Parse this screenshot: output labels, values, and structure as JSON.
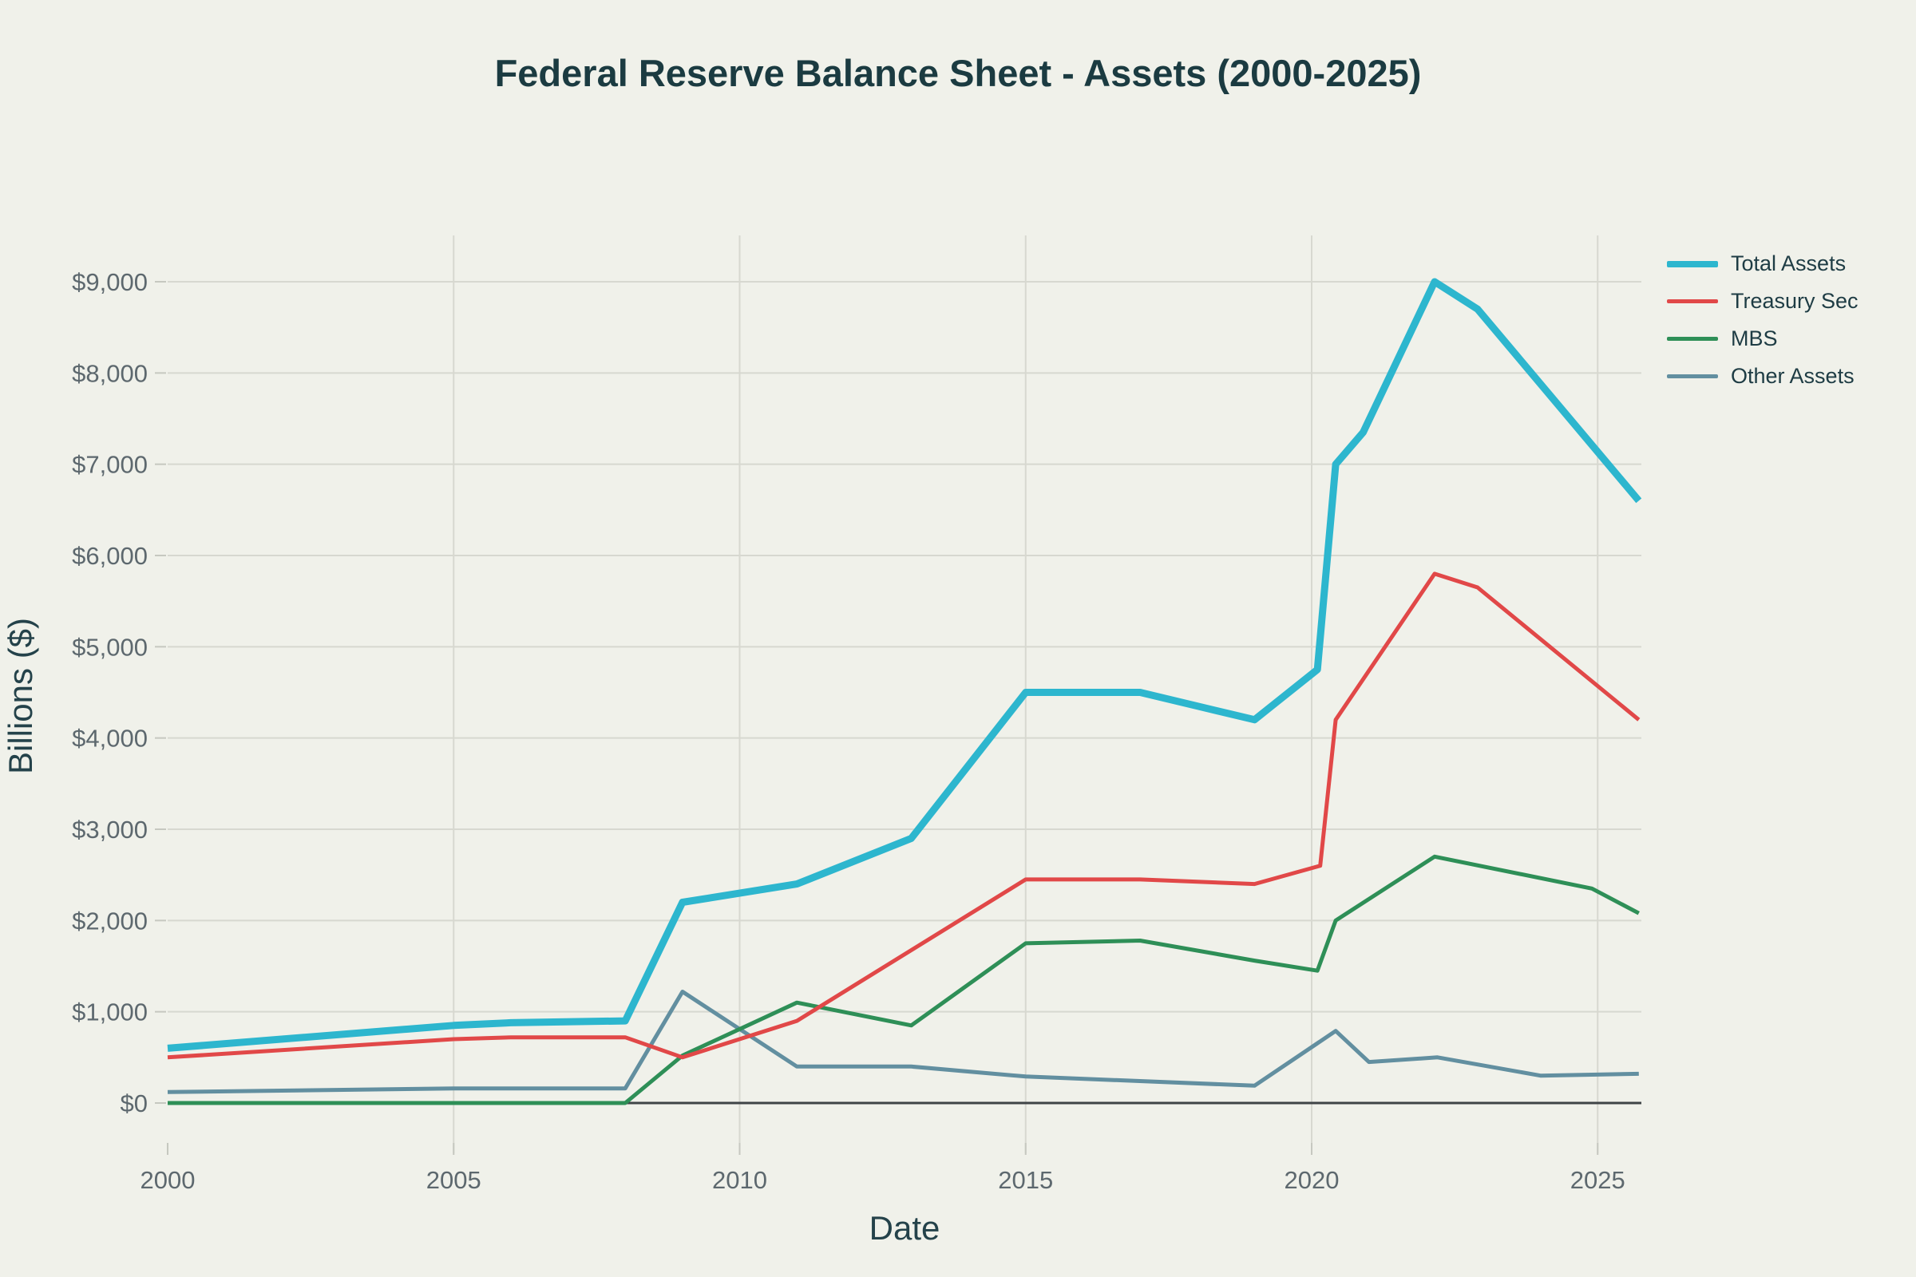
{
  "theme": {
    "background": "#f0f1ea",
    "grid_line": "#d7d8d0",
    "tick_mark": "#c6c8c0",
    "zero_line": "#3f4447",
    "tick_label": "#5d686e",
    "axis_title": "#24424a",
    "title": "#1b3b41",
    "legend_text": "#1e3c44"
  },
  "chart_data": {
    "type": "line",
    "title": "Federal Reserve Balance Sheet - Assets (2000-2025)",
    "xlabel": "Date",
    "ylabel": "Billions ($)",
    "x_range": [
      2000,
      2025.8
    ],
    "y_range": [
      0,
      9500
    ],
    "grid": true,
    "legend_position": "top-right",
    "x_ticks": [
      {
        "v": 2000,
        "label": "2000"
      },
      {
        "v": 2005,
        "label": "2005"
      },
      {
        "v": 2010,
        "label": "2010"
      },
      {
        "v": 2015,
        "label": "2015"
      },
      {
        "v": 2020,
        "label": "2020"
      },
      {
        "v": 2025,
        "label": "2025"
      }
    ],
    "y_ticks": [
      {
        "v": 0,
        "label": "$0"
      },
      {
        "v": 1000,
        "label": "$1,000"
      },
      {
        "v": 2000,
        "label": "$2,000"
      },
      {
        "v": 3000,
        "label": "$3,000"
      },
      {
        "v": 4000,
        "label": "$4,000"
      },
      {
        "v": 5000,
        "label": "$5,000"
      },
      {
        "v": 6000,
        "label": "$6,000"
      },
      {
        "v": 7000,
        "label": "$7,000"
      },
      {
        "v": 8000,
        "label": "$8,000"
      },
      {
        "v": 9000,
        "label": "$9,000"
      }
    ],
    "series": [
      {
        "name": "Total Assets",
        "color": "#2db6ce",
        "line_width": 9,
        "swatch_height": 8,
        "points": [
          [
            2000,
            600
          ],
          [
            2005,
            850
          ],
          [
            2006,
            880
          ],
          [
            2008,
            900
          ],
          [
            2009,
            2200
          ],
          [
            2011,
            2400
          ],
          [
            2013,
            2900
          ],
          [
            2015,
            4500
          ],
          [
            2017,
            4500
          ],
          [
            2019,
            4200
          ],
          [
            2020.1,
            4750
          ],
          [
            2020.42,
            7000
          ],
          [
            2020.9,
            7350
          ],
          [
            2022.15,
            9000
          ],
          [
            2022.9,
            8700
          ],
          [
            2025.72,
            6600
          ]
        ]
      },
      {
        "name": "Treasury Sec",
        "color": "#e14848",
        "line_width": 5,
        "swatch_height": 5,
        "points": [
          [
            2000,
            500
          ],
          [
            2005,
            700
          ],
          [
            2006,
            720
          ],
          [
            2008,
            720
          ],
          [
            2009,
            500
          ],
          [
            2011,
            900
          ],
          [
            2015,
            2450
          ],
          [
            2017,
            2450
          ],
          [
            2019,
            2400
          ],
          [
            2020.15,
            2600
          ],
          [
            2020.42,
            4200
          ],
          [
            2022.15,
            5800
          ],
          [
            2022.9,
            5650
          ],
          [
            2025.72,
            4200
          ]
        ]
      },
      {
        "name": "MBS",
        "color": "#2e8f57",
        "line_width": 5,
        "swatch_height": 5,
        "points": [
          [
            2000,
            0
          ],
          [
            2008,
            0
          ],
          [
            2009,
            520
          ],
          [
            2011,
            1100
          ],
          [
            2013,
            850
          ],
          [
            2015,
            1750
          ],
          [
            2017,
            1780
          ],
          [
            2019,
            1560
          ],
          [
            2020.1,
            1450
          ],
          [
            2020.42,
            2000
          ],
          [
            2022.15,
            2700
          ],
          [
            2024.9,
            2350
          ],
          [
            2025.72,
            2080
          ]
        ]
      },
      {
        "name": "Other Assets",
        "color": "#628fa0",
        "line_width": 5,
        "swatch_height": 5,
        "points": [
          [
            2000,
            120
          ],
          [
            2005,
            160
          ],
          [
            2008,
            160
          ],
          [
            2009,
            1220
          ],
          [
            2011,
            400
          ],
          [
            2013,
            400
          ],
          [
            2015,
            290
          ],
          [
            2019,
            190
          ],
          [
            2020.42,
            790
          ],
          [
            2021,
            450
          ],
          [
            2022.2,
            500
          ],
          [
            2024,
            300
          ],
          [
            2025.72,
            320
          ]
        ]
      }
    ]
  }
}
